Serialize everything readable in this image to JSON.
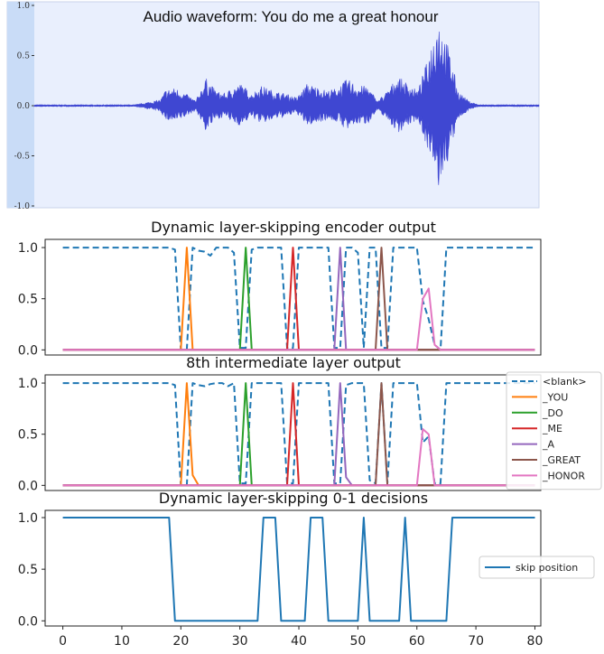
{
  "colors": {
    "blank": "#1f77b4",
    "YOU": "#ff7f0e",
    "DO": "#2ca02c",
    "ME": "#d62728",
    "A": "#9467bd",
    "GREAT": "#8c564b",
    "HONOR": "#e377c2",
    "skip": "#1f77b4",
    "waveform": "#3f47d2",
    "waveform_bg": "#e9effd"
  },
  "chart_data": [
    {
      "type": "area",
      "title": "Audio waveform: You do me a great honour",
      "ylim": [
        -1.0,
        1.0
      ],
      "yticks": [
        "1.0",
        "0.5",
        "0.0",
        "-0.5",
        "-1.0"
      ],
      "ytick_values": [
        1.0,
        0.5,
        0.0,
        -0.5,
        -1.0
      ],
      "envelope": {
        "x_fraction": [
          0.0,
          0.2,
          0.25,
          0.26,
          0.28,
          0.3,
          0.32,
          0.34,
          0.36,
          0.38,
          0.39,
          0.41,
          0.43,
          0.45,
          0.48,
          0.5,
          0.52,
          0.54,
          0.56,
          0.58,
          0.6,
          0.62,
          0.64,
          0.66,
          0.68,
          0.7,
          0.72,
          0.74,
          0.76,
          0.78,
          0.8,
          0.82,
          0.84,
          0.86,
          0.88,
          1.0
        ],
        "amplitude": [
          0.01,
          0.01,
          0.06,
          0.16,
          0.18,
          0.12,
          0.05,
          0.28,
          0.15,
          0.12,
          0.18,
          0.22,
          0.12,
          0.2,
          0.14,
          0.12,
          0.08,
          0.22,
          0.19,
          0.15,
          0.18,
          0.27,
          0.2,
          0.2,
          0.05,
          0.15,
          0.3,
          0.22,
          0.15,
          0.48,
          0.92,
          0.6,
          0.15,
          0.05,
          0.01,
          0.01
        ]
      }
    },
    {
      "type": "line",
      "title": "Dynamic layer-skipping encoder output",
      "xlim": [
        -3,
        81
      ],
      "ylim": [
        -0.05,
        1.08
      ],
      "yticks": [
        "0.0",
        "0.5",
        "1.0"
      ],
      "ytick_values": [
        0,
        0.5,
        1.0
      ],
      "series": [
        {
          "name": "<blank>",
          "key": "blank",
          "dashed": true,
          "x": [
            0,
            18,
            19,
            20,
            21,
            22,
            23,
            24,
            25,
            26,
            27,
            28,
            29,
            30,
            31,
            32,
            33,
            37,
            38,
            39,
            40,
            45,
            46,
            47,
            48,
            49,
            50,
            51,
            52,
            53,
            54,
            55,
            56,
            60,
            61,
            62,
            63,
            64,
            65,
            80
          ],
          "y": [
            1,
            1,
            0.98,
            0,
            0,
            1,
            0.97,
            0.96,
            0.92,
            1,
            1,
            1,
            0.95,
            0.02,
            0.02,
            0.98,
            1,
            1,
            0.02,
            0.02,
            1,
            1,
            0.02,
            0.02,
            1,
            1,
            0.95,
            0.02,
            1,
            1,
            0.02,
            0.02,
            1,
            1,
            0.48,
            0.3,
            0.05,
            0,
            1,
            1
          ]
        },
        {
          "name": "_YOU",
          "key": "YOU",
          "x": [
            0,
            20,
            21,
            22,
            80
          ],
          "y": [
            0,
            0,
            1,
            0,
            0
          ]
        },
        {
          "name": "_DO",
          "key": "DO",
          "x": [
            0,
            30,
            31,
            32,
            80
          ],
          "y": [
            0,
            0,
            1,
            0,
            0
          ]
        },
        {
          "name": "_ME",
          "key": "ME",
          "x": [
            0,
            38,
            39,
            40,
            80
          ],
          "y": [
            0,
            0,
            1,
            0,
            0
          ]
        },
        {
          "name": "_A",
          "key": "A",
          "x": [
            0,
            46,
            47,
            48,
            80
          ],
          "y": [
            0,
            0,
            1,
            0,
            0
          ]
        },
        {
          "name": "_GREAT",
          "key": "GREAT",
          "x": [
            0,
            53,
            54,
            55,
            80
          ],
          "y": [
            0,
            0,
            1,
            0,
            0
          ]
        },
        {
          "name": "_HONOR",
          "key": "HONOR",
          "x": [
            0,
            60,
            61,
            62,
            63,
            64,
            80
          ],
          "y": [
            0,
            0,
            0.5,
            0.6,
            0.05,
            0,
            0
          ]
        }
      ]
    },
    {
      "type": "line",
      "title": "8th intermediate layer output",
      "xlim": [
        -3,
        81
      ],
      "ylim": [
        -0.05,
        1.08
      ],
      "yticks": [
        "0.0",
        "0.5",
        "1.0"
      ],
      "ytick_values": [
        0,
        0.5,
        1.0
      ],
      "legend": "right",
      "series": [
        {
          "name": "<blank>",
          "key": "blank",
          "dashed": true,
          "x": [
            0,
            18,
            19,
            20,
            21,
            22,
            23,
            24,
            25,
            26,
            27,
            28,
            29,
            30,
            31,
            32,
            33,
            37,
            38,
            39,
            40,
            45,
            46,
            47,
            48,
            49,
            50,
            51,
            52,
            53,
            54,
            55,
            56,
            60,
            61,
            62,
            63,
            64,
            65,
            80
          ],
          "y": [
            1,
            1,
            0.98,
            0,
            0,
            1,
            0.98,
            0.97,
            0.99,
            1,
            1,
            0.97,
            1,
            0.02,
            0.02,
            1,
            1,
            1,
            0.02,
            0.02,
            1,
            1,
            0.02,
            0.02,
            0.98,
            1,
            1,
            1,
            0.05,
            0.02,
            1,
            0.02,
            1,
            1,
            0.42,
            0.48,
            0.02,
            0.02,
            1,
            1
          ]
        },
        {
          "name": "_YOU",
          "key": "YOU",
          "x": [
            0,
            20,
            21,
            22,
            23,
            80
          ],
          "y": [
            0,
            0,
            1,
            0.1,
            0,
            0
          ]
        },
        {
          "name": "_DO",
          "key": "DO",
          "x": [
            0,
            30,
            31,
            32,
            80
          ],
          "y": [
            0,
            0,
            1,
            0,
            0
          ]
        },
        {
          "name": "_ME",
          "key": "ME",
          "x": [
            0,
            38,
            39,
            40,
            80
          ],
          "y": [
            0,
            0,
            1,
            0,
            0
          ]
        },
        {
          "name": "_A",
          "key": "A",
          "x": [
            0,
            46,
            47,
            48,
            49,
            80
          ],
          "y": [
            0,
            0,
            1,
            0.08,
            0,
            0
          ]
        },
        {
          "name": "_GREAT",
          "key": "GREAT",
          "x": [
            0,
            53,
            54,
            55,
            80
          ],
          "y": [
            0,
            0,
            1,
            0,
            0
          ]
        },
        {
          "name": "_HONOR",
          "key": "HONOR",
          "x": [
            0,
            60,
            61,
            62,
            63,
            80
          ],
          "y": [
            0,
            0,
            0.55,
            0.5,
            0,
            0
          ]
        }
      ]
    },
    {
      "type": "line",
      "title": "Dynamic layer-skipping 0-1 decisions",
      "xlim": [
        -3,
        81
      ],
      "ylim": [
        -0.05,
        1.07
      ],
      "xticks": [
        "0",
        "10",
        "20",
        "30",
        "40",
        "50",
        "60",
        "70",
        "80"
      ],
      "xtick_values": [
        0,
        10,
        20,
        30,
        40,
        50,
        60,
        70,
        80
      ],
      "yticks": [
        "0.0",
        "0.5",
        "1.0"
      ],
      "ytick_values": [
        0,
        0.5,
        1.0
      ],
      "legend": "right",
      "series": [
        {
          "name": "skip position",
          "key": "skip",
          "x": [
            0,
            18,
            19,
            33,
            34,
            36,
            37,
            41,
            42,
            44,
            45,
            50,
            51,
            52,
            57,
            58,
            59,
            65,
            66,
            80
          ],
          "y": [
            1,
            1,
            0,
            0,
            1,
            1,
            0,
            0,
            1,
            1,
            0,
            0,
            1,
            0,
            0,
            1,
            0,
            0,
            1,
            1
          ]
        }
      ]
    }
  ]
}
